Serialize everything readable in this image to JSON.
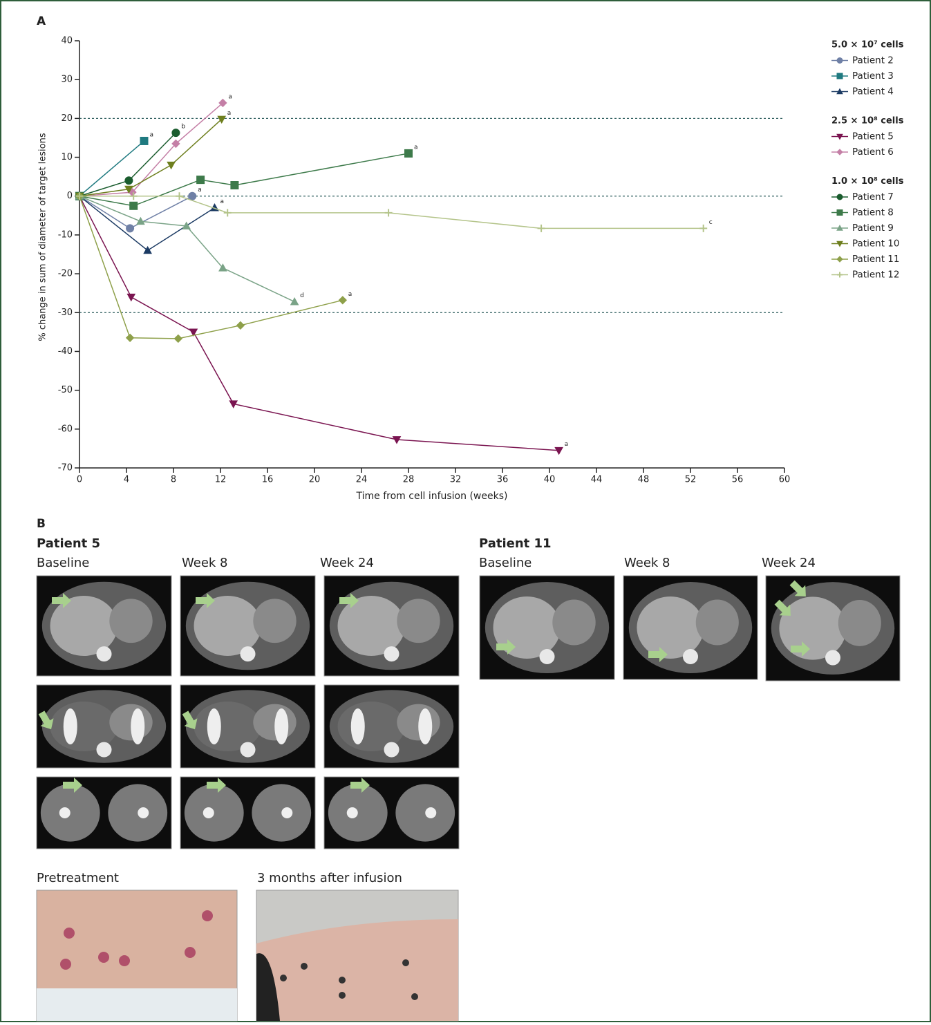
{
  "panel_a_label": "A",
  "chart_data": {
    "type": "line",
    "x_label": "Time from cell infusion (weeks)",
    "y_label": "% change in sum of diameter of target lesions",
    "xlim": [
      0,
      60
    ],
    "xticks": [
      0,
      4,
      8,
      12,
      16,
      20,
      24,
      28,
      32,
      36,
      40,
      44,
      48,
      52,
      56,
      60
    ],
    "ylim": [
      -70,
      40
    ],
    "yticks": [
      -70,
      -60,
      -50,
      -40,
      -30,
      -20,
      -10,
      0,
      10,
      20,
      30,
      40
    ],
    "reference_lines": [
      20,
      0,
      -30
    ],
    "groups": [
      {
        "title": "5.0 × 10⁷ cells",
        "series": [
          {
            "name": "Patient 2",
            "color": "#6f80a6",
            "marker": "circle",
            "x": [
              0,
              4.3,
              9.6
            ],
            "values": [
              0,
              -8.3,
              0
            ],
            "end_label": "a"
          },
          {
            "name": "Patient 3",
            "color": "#1f7a80",
            "marker": "square",
            "x": [
              0,
              5.5
            ],
            "values": [
              0,
              14.2
            ],
            "end_label": "a"
          },
          {
            "name": "Patient 4",
            "color": "#1b3a63",
            "marker": "triangle",
            "x": [
              0,
              5.8,
              11.5
            ],
            "values": [
              0,
              -14,
              -3
            ],
            "end_label": "a"
          }
        ]
      },
      {
        "title": "2.5 × 10⁸ cells",
        "series": [
          {
            "name": "Patient 5",
            "color": "#7a1450",
            "marker": "triangle-down",
            "x": [
              0,
              4.4,
              9.7,
              13.1,
              27,
              40.8
            ],
            "values": [
              0,
              -26,
              -35,
              -53.5,
              -62.7,
              -65.5
            ],
            "end_label": "a"
          },
          {
            "name": "Patient 6",
            "color": "#c47fa6",
            "marker": "diamond",
            "x": [
              0,
              4.5,
              8.2,
              12.2
            ],
            "values": [
              0,
              1,
              13.5,
              24
            ],
            "end_label": "a"
          }
        ]
      },
      {
        "title": "1.0 × 10⁸ cells",
        "series": [
          {
            "name": "Patient 7",
            "color": "#1a5c2e",
            "marker": "circle",
            "x": [
              0,
              4.2,
              8.2
            ],
            "values": [
              0,
              4,
              16.3
            ],
            "end_label": "b"
          },
          {
            "name": "Patient 8",
            "color": "#3d7a4a",
            "marker": "square",
            "x": [
              0,
              4.6,
              10.3,
              13.2,
              28
            ],
            "values": [
              0,
              -2.5,
              4.2,
              2.8,
              11
            ],
            "end_label": "a"
          },
          {
            "name": "Patient 9",
            "color": "#7aa387",
            "marker": "triangle",
            "x": [
              0,
              5.2,
              9.1,
              12.2,
              18.3
            ],
            "values": [
              0,
              -6.5,
              -7.7,
              -18.5,
              -27.2
            ],
            "end_label": "d"
          },
          {
            "name": "Patient 10",
            "color": "#6e7f1e",
            "marker": "triangle-down",
            "x": [
              0,
              4.2,
              7.8,
              12.1
            ],
            "values": [
              0,
              1.8,
              8,
              19.8
            ],
            "end_label": "a"
          },
          {
            "name": "Patient 11",
            "color": "#8ea04a",
            "marker": "diamond",
            "x": [
              0,
              4.3,
              8.4,
              13.7,
              22.4
            ],
            "values": [
              0,
              -36.5,
              -36.7,
              -33.3,
              -26.8
            ],
            "end_label": "a"
          },
          {
            "name": "Patient 12",
            "color": "#b4c48a",
            "marker": "plus",
            "x": [
              0,
              4.6,
              8.5,
              12.6,
              26.3,
              39.3,
              53.1
            ],
            "values": [
              0,
              0,
              0,
              -4.3,
              -4.3,
              -8.3,
              -8.3
            ],
            "end_label": "c"
          }
        ]
      }
    ]
  },
  "panel_b": {
    "label": "B",
    "patient_5": {
      "title": "Patient 5",
      "columns": [
        "Baseline",
        "Week 8",
        "Week 24"
      ]
    },
    "patient_11": {
      "title": "Patient 11",
      "columns": [
        "Baseline",
        "Week 8",
        "Week 24"
      ]
    },
    "photos": [
      "Pretreatment",
      "3 months after infusion"
    ]
  }
}
